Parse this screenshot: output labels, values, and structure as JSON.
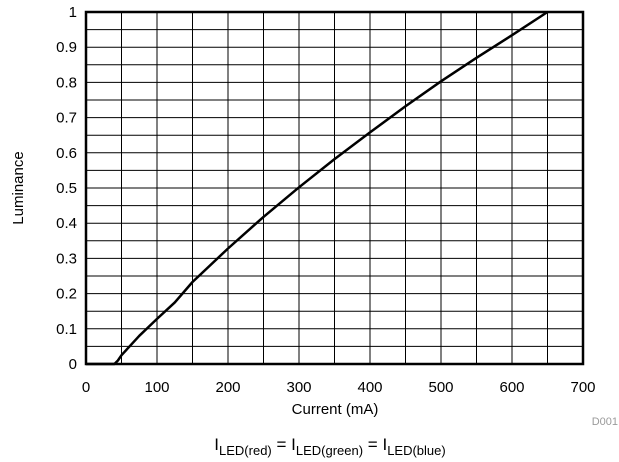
{
  "chart_data": {
    "type": "line",
    "xlabel": "Current (mA)",
    "ylabel": "Luminance",
    "xlim": [
      0,
      700
    ],
    "ylim": [
      0,
      1
    ],
    "xticks": [
      "0",
      "100",
      "200",
      "300",
      "400",
      "500",
      "600",
      "700"
    ],
    "yticks": [
      "0",
      "0.1",
      "0.2",
      "0.3",
      "0.4",
      "0.5",
      "0.6",
      "0.7",
      "0.8",
      "0.9",
      "1"
    ],
    "grid": true,
    "x_minor_step": 50,
    "y_minor_step": 0.05,
    "figure_id": "D001",
    "series": [
      {
        "x": [
          0,
          40,
          45,
          50,
          75,
          100,
          125,
          150,
          200,
          250,
          300,
          350,
          400,
          450,
          500,
          550,
          600,
          650
        ],
        "y": [
          0,
          0,
          0.01,
          0.025,
          0.08,
          0.128,
          0.175,
          0.233,
          0.328,
          0.418,
          0.502,
          0.582,
          0.658,
          0.732,
          0.803,
          0.87,
          0.934,
          1.0
        ]
      }
    ]
  },
  "caption": {
    "main_1": "I",
    "sub_1": "LED(red)",
    "eq_1": " = I",
    "sub_2": "LED(green)",
    "eq_2": " = I",
    "sub_3": "LED(blue)"
  }
}
